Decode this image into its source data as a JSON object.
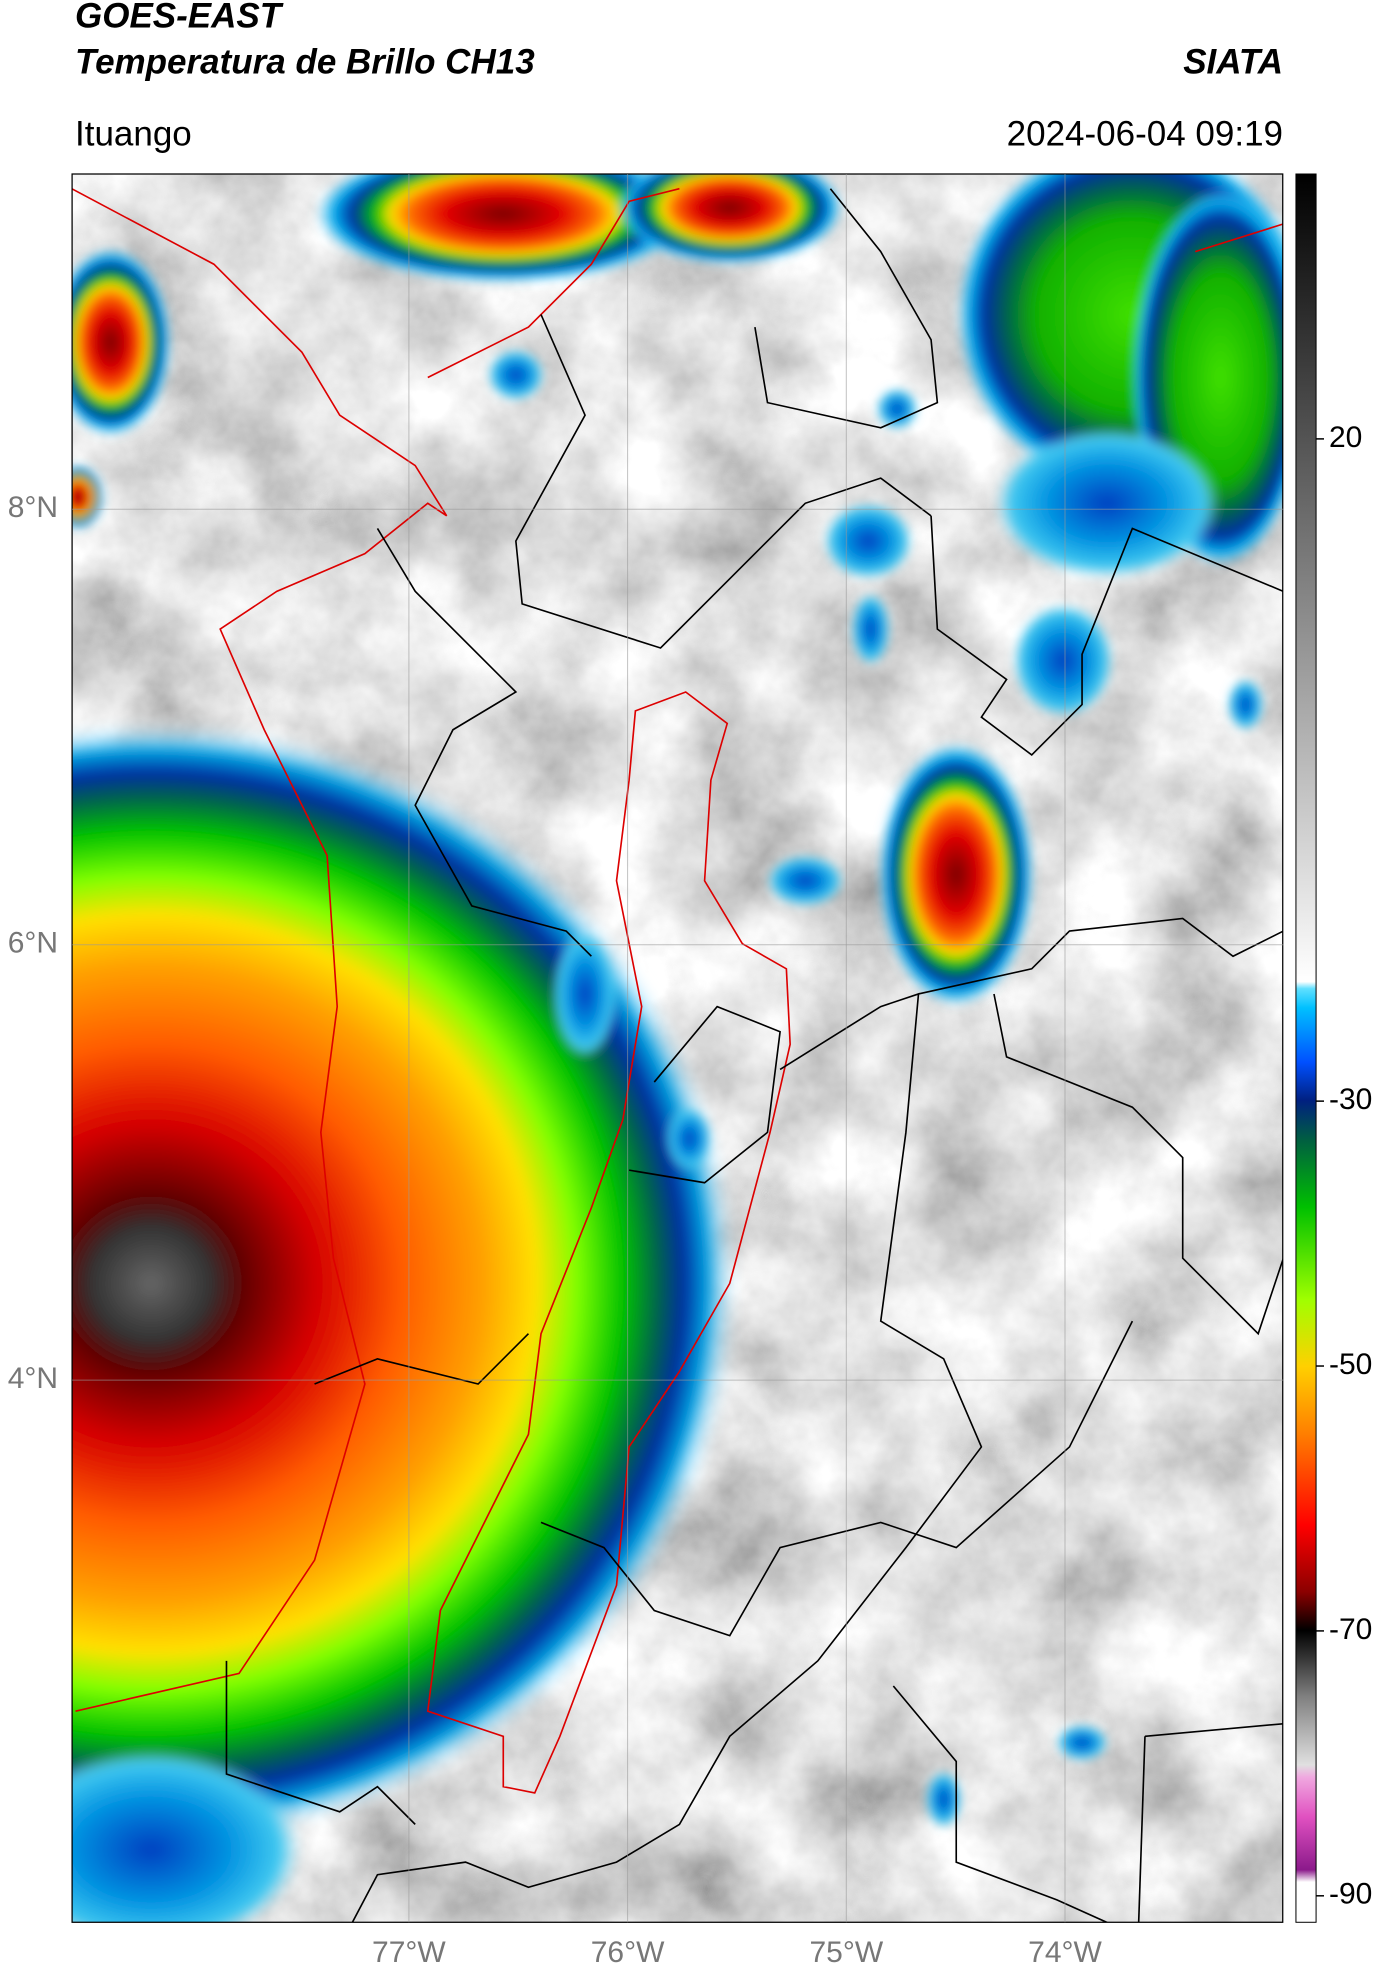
{
  "header": {
    "title": "GOES-EAST",
    "subtitle": "Temperatura de Brillo CH13",
    "brand": "SIATA",
    "location": "Ituango",
    "datetime": "2024-06-04 09:19"
  },
  "map": {
    "xlim": [
      -78.54,
      -73.0
    ],
    "ylim": [
      1.51,
      9.54
    ],
    "xticks": [
      {
        "value": -77,
        "label": "77°W"
      },
      {
        "value": -76,
        "label": "76°W"
      },
      {
        "value": -75,
        "label": "75°W"
      },
      {
        "value": -74,
        "label": "74°W"
      }
    ],
    "yticks": [
      {
        "value": 4,
        "label": "4°N"
      },
      {
        "value": 6,
        "label": "6°N"
      },
      {
        "value": 8,
        "label": "8°N"
      }
    ],
    "grid": true,
    "colorbar": {
      "lim": [
        -92,
        40
      ],
      "ticks": [
        -90,
        -70,
        -50,
        -30,
        20
      ]
    }
  }
}
